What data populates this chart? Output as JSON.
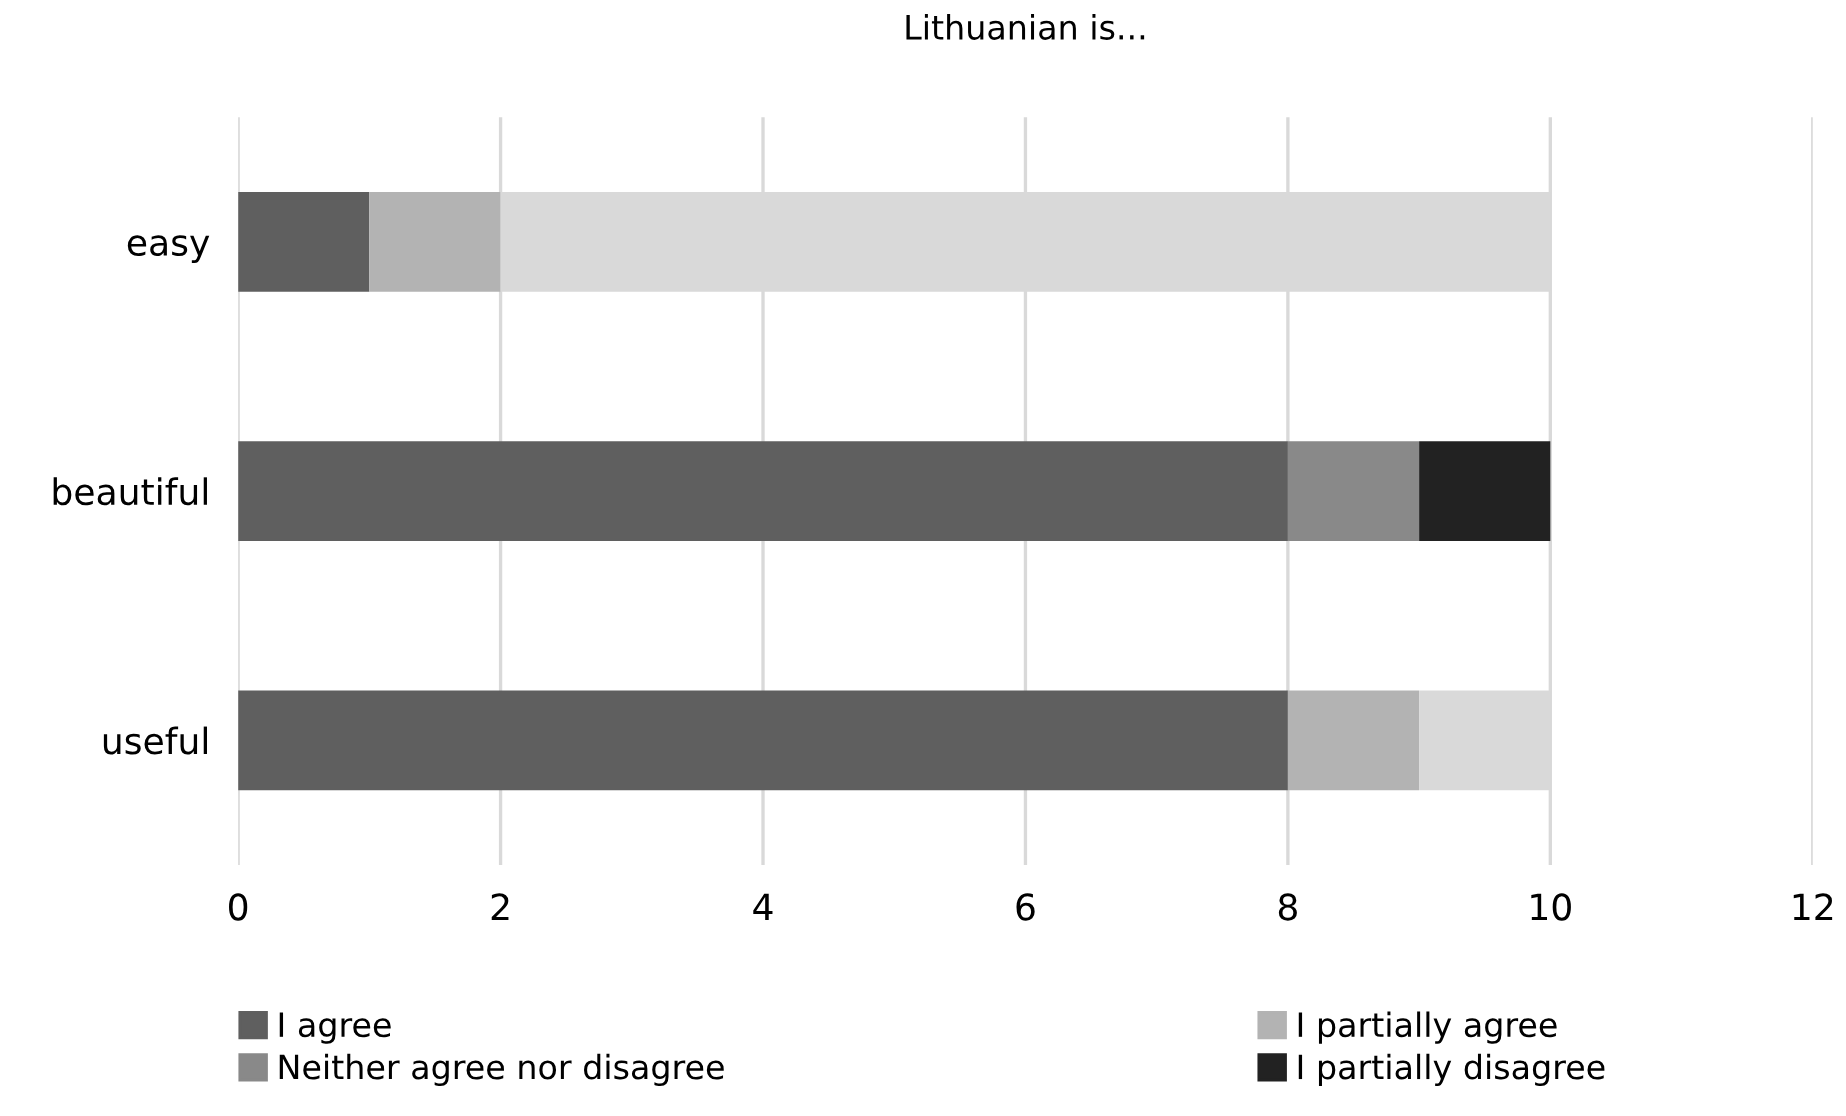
{
  "chart_data": {
    "type": "bar",
    "orientation": "horizontal",
    "stacked": true,
    "title": "Lithuanian is...",
    "categories": [
      "easy",
      "beautiful",
      "useful"
    ],
    "series": [
      {
        "name": "I agree",
        "color": "#5f5f5f",
        "values": [
          1,
          8,
          8
        ]
      },
      {
        "name": "I partially agree",
        "color": "#b3b3b3",
        "values": [
          1,
          0,
          1
        ]
      },
      {
        "name": "Neither agree nor disagree",
        "color": "#898989",
        "values": [
          0,
          1,
          0
        ]
      },
      {
        "name": "I partially disagree",
        "color": "#222222",
        "values": [
          0,
          1,
          0
        ]
      },
      {
        "color": "#d9d9d9",
        "values": [
          8,
          0,
          1
        ]
      }
    ],
    "xlim": [
      0,
      12
    ],
    "xticks": [
      0,
      2,
      4,
      6,
      8,
      10,
      12
    ],
    "grid": "x",
    "legend": "bottom"
  }
}
